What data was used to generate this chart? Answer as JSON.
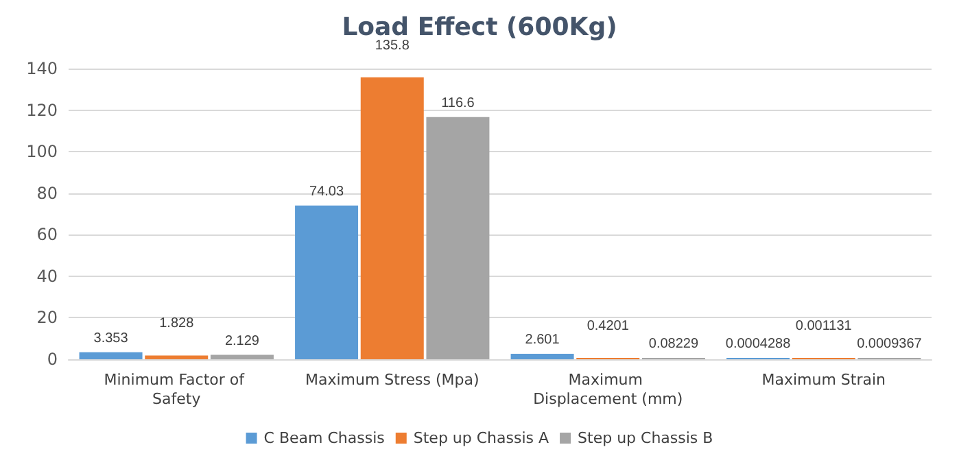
{
  "chart_data": {
    "type": "bar",
    "title": "Load Effect (600Kg)",
    "categories": [
      "Minimum Factor of Safety",
      "Maximum Stress (Mpa)",
      "Maximum Displacement (mm)",
      "Maximum Strain"
    ],
    "series": [
      {
        "name": "C Beam Chassis",
        "color": "#5b9bd5",
        "values": [
          3.353,
          74.03,
          2.601,
          0.0004288
        ]
      },
      {
        "name": "Step up Chassis A",
        "color": "#ed7d31",
        "values": [
          1.828,
          135.8,
          0.4201,
          0.001131
        ]
      },
      {
        "name": "Step up Chassis B",
        "color": "#a5a5a5",
        "values": [
          2.129,
          116.6,
          0.08229,
          0.0009367
        ]
      }
    ],
    "ylim": [
      0,
      140
    ],
    "yticks": [
      0,
      20,
      40,
      60,
      80,
      100,
      120,
      140
    ],
    "grid": "y",
    "legend": "bottom",
    "data_labels": true
  }
}
